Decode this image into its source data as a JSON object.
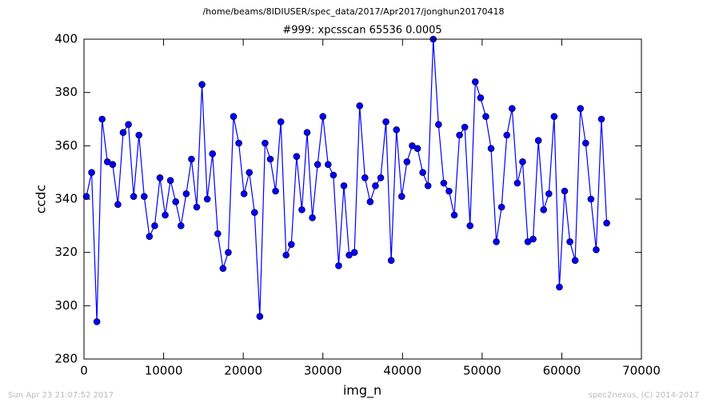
{
  "chart_data": {
    "type": "line",
    "suptitle": "/home/beams/8IDIUSER/spec_data/2017/Apr2017/jonghun20170418",
    "title": "#999: xpcsscan 65536 0.0005",
    "xlabel": "img_n",
    "ylabel": "ccdc",
    "footer_left": "Sun Apr 23 21:07:52 2017",
    "footer_right": "spec2nexus, (C) 2014-2017",
    "x": [
      300,
      960,
      1620,
      2280,
      2940,
      3600,
      4260,
      4920,
      5580,
      6240,
      6900,
      7560,
      8220,
      8880,
      9540,
      10200,
      10860,
      11520,
      12180,
      12840,
      13500,
      14160,
      14820,
      15480,
      16140,
      16800,
      17460,
      18120,
      18780,
      19440,
      20100,
      20760,
      21420,
      22080,
      22740,
      23400,
      24060,
      24720,
      25380,
      26040,
      26700,
      27360,
      28020,
      28680,
      29340,
      30000,
      30660,
      31320,
      31980,
      32640,
      33300,
      33960,
      34620,
      35280,
      35940,
      36600,
      37260,
      37920,
      38580,
      39240,
      39900,
      40560,
      41220,
      41880,
      42540,
      43200,
      43860,
      44520,
      45180,
      45840,
      46500,
      47160,
      47820,
      48480,
      49140,
      49800,
      50460,
      51120,
      51780,
      52440,
      53100,
      53760,
      54420,
      55080,
      55740,
      56400,
      57060,
      57720,
      58380,
      59040,
      59700,
      60360,
      61020,
      61680,
      62340,
      63000,
      63660,
      64320,
      64980,
      65640
    ],
    "series": [
      {
        "name": "ccdc",
        "color": "#0000ff",
        "values": [
          341,
          350,
          294,
          370,
          354,
          353,
          338,
          365,
          368,
          341,
          364,
          341,
          326,
          330,
          348,
          334,
          347,
          339,
          330,
          342,
          355,
          337,
          383,
          340,
          357,
          327,
          314,
          320,
          371,
          361,
          342,
          350,
          335,
          296,
          361,
          355,
          343,
          369,
          319,
          323,
          356,
          336,
          365,
          333,
          353,
          371,
          353,
          349,
          315,
          345,
          319,
          320,
          375,
          348,
          339,
          345,
          348,
          369,
          317,
          366,
          341,
          354,
          360,
          359,
          350,
          345,
          400,
          368,
          346,
          343,
          334,
          364,
          367,
          330,
          384,
          378,
          371,
          359,
          324,
          337,
          364,
          374,
          346,
          354,
          324,
          325,
          362,
          336,
          342,
          371,
          307,
          343,
          324,
          317,
          374,
          361,
          340,
          321,
          370,
          331
        ]
      }
    ],
    "xlim": [
      0,
      70000
    ],
    "xticks": [
      0,
      10000,
      20000,
      30000,
      40000,
      50000,
      60000,
      70000
    ],
    "ylim": [
      280,
      400
    ],
    "yticks": [
      280,
      300,
      320,
      340,
      360,
      380,
      400
    ]
  }
}
